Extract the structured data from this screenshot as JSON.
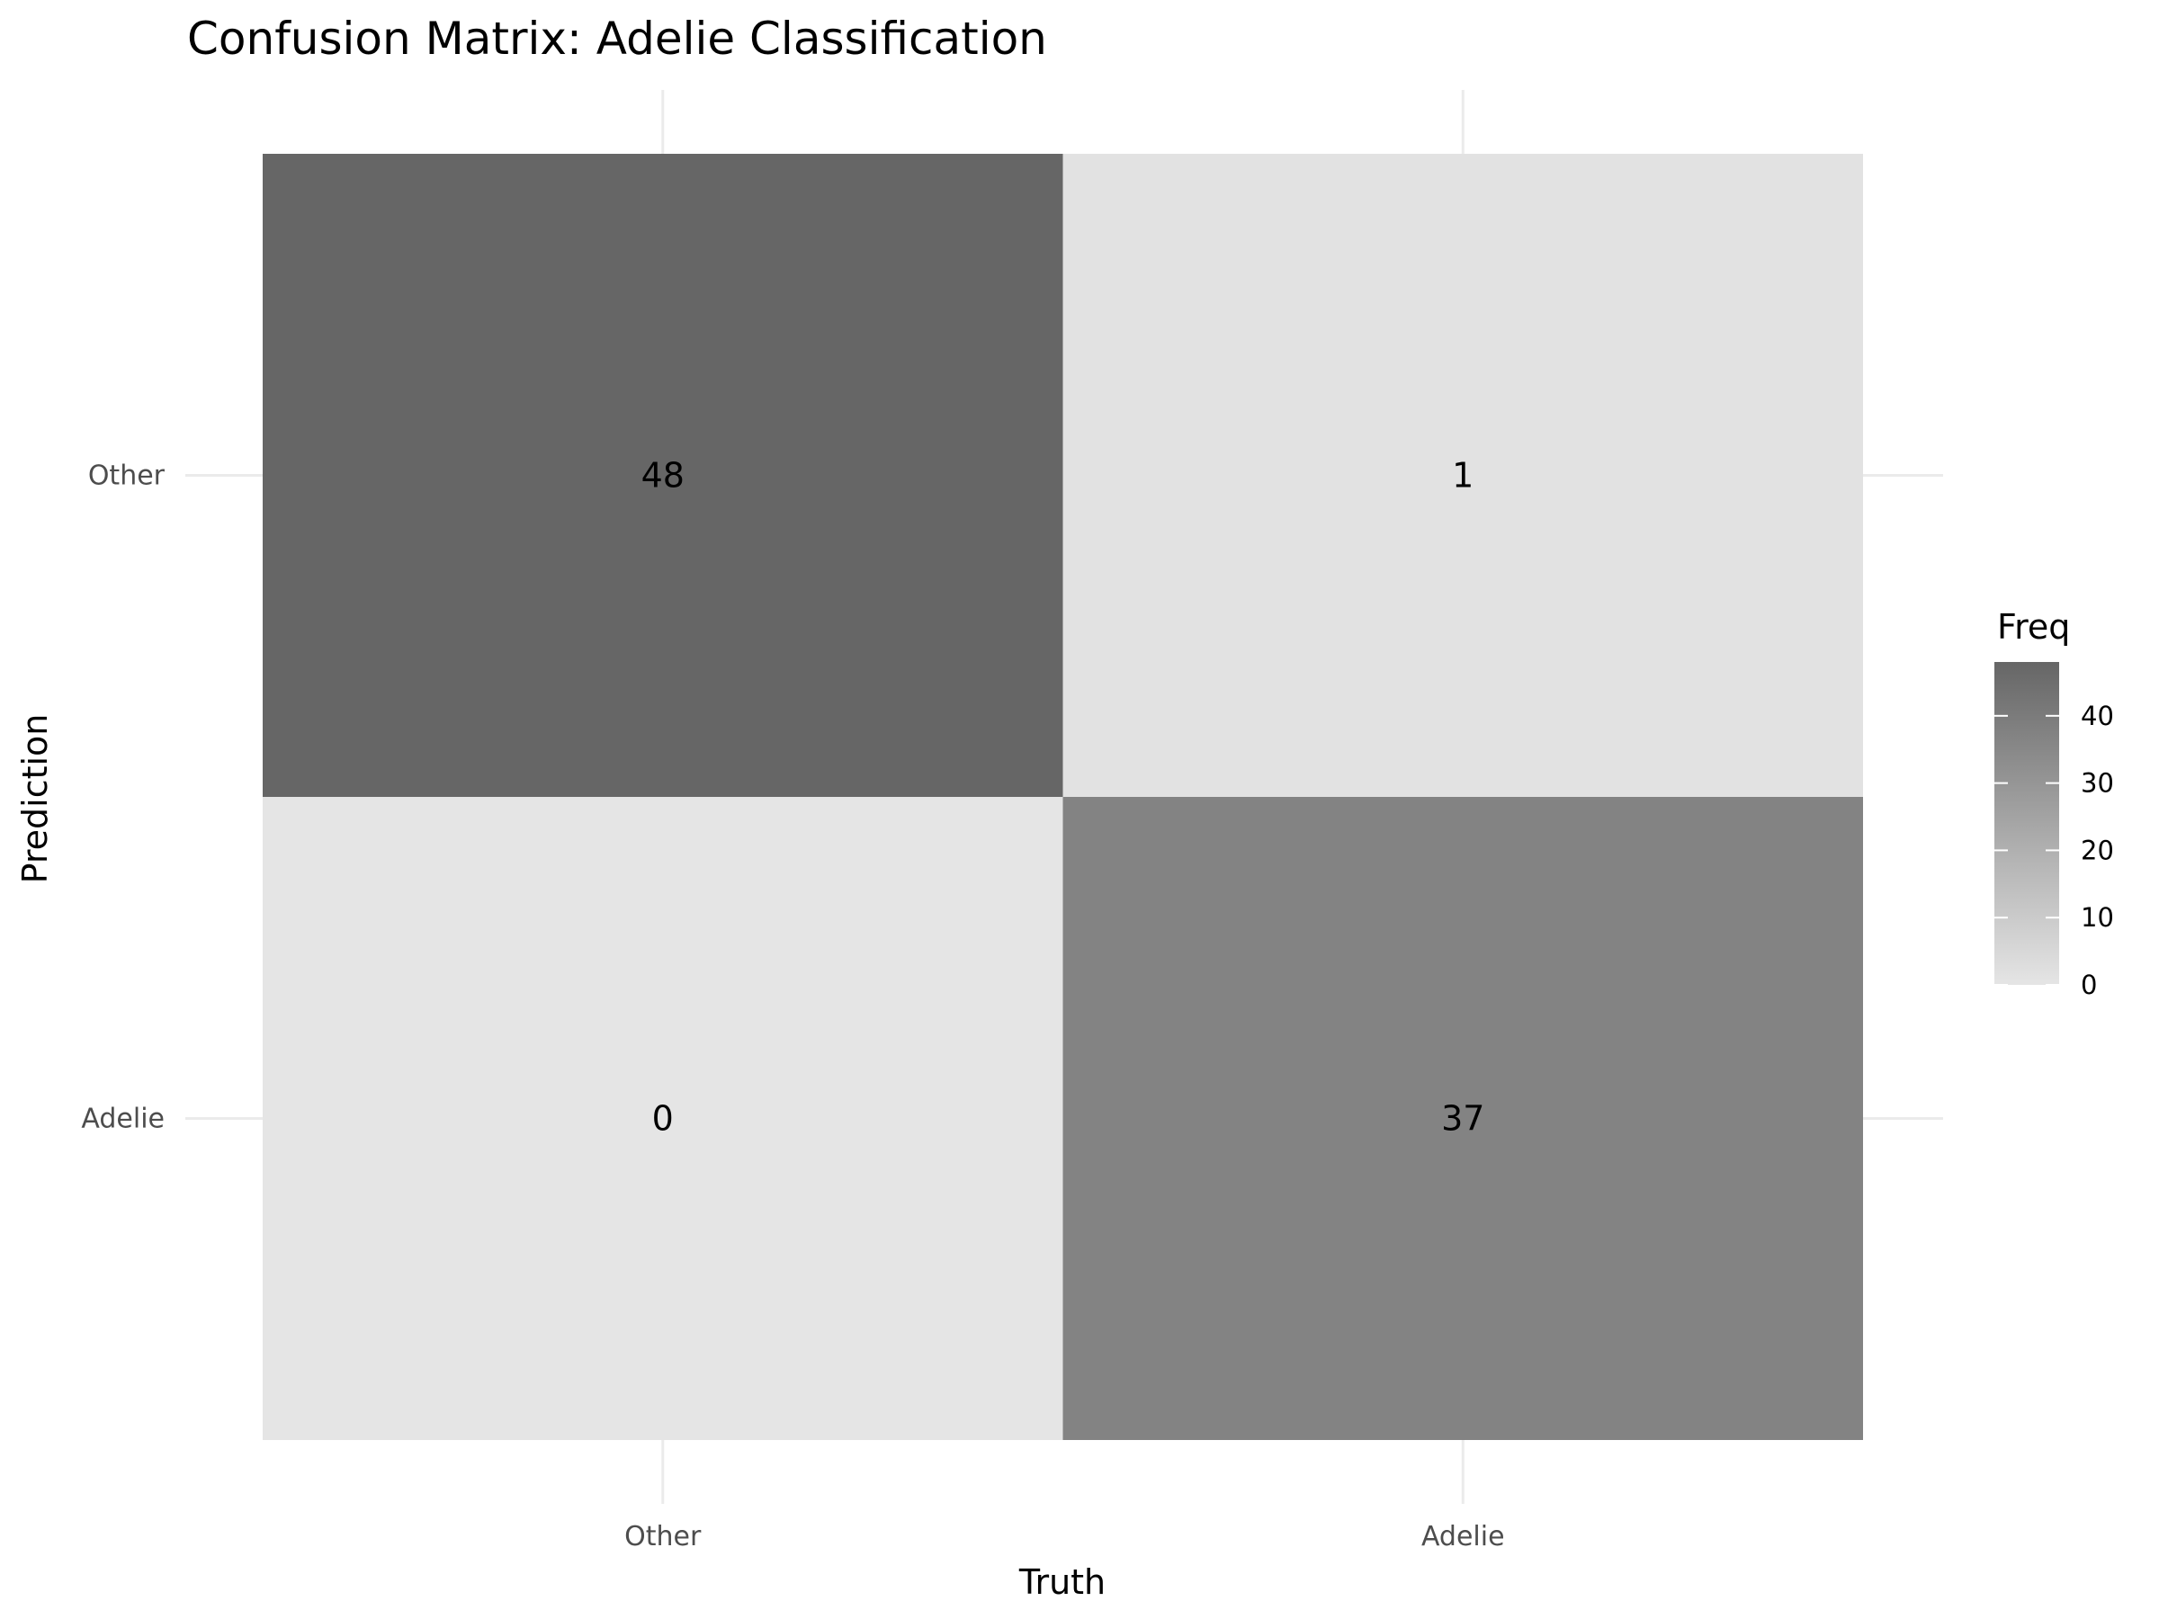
{
  "chart_data": {
    "type": "heatmap",
    "title": "Confusion Matrix: Adelie Classification",
    "xlabel": "Truth",
    "ylabel": "Prediction",
    "x_categories": [
      "Other",
      "Adelie"
    ],
    "y_categories": [
      "Other",
      "Adelie"
    ],
    "cells": [
      {
        "truth": "Other",
        "prediction": "Other",
        "value": 48
      },
      {
        "truth": "Adelie",
        "prediction": "Other",
        "value": 1
      },
      {
        "truth": "Other",
        "prediction": "Adelie",
        "value": 0
      },
      {
        "truth": "Adelie",
        "prediction": "Adelie",
        "value": 37
      }
    ],
    "legend": {
      "title": "Freq",
      "position": "right",
      "ticks": [
        0,
        10,
        20,
        30,
        40
      ],
      "range": [
        0,
        48
      ],
      "low_color": "#e5e5e5",
      "high_color": "#666666"
    },
    "grid": true
  }
}
